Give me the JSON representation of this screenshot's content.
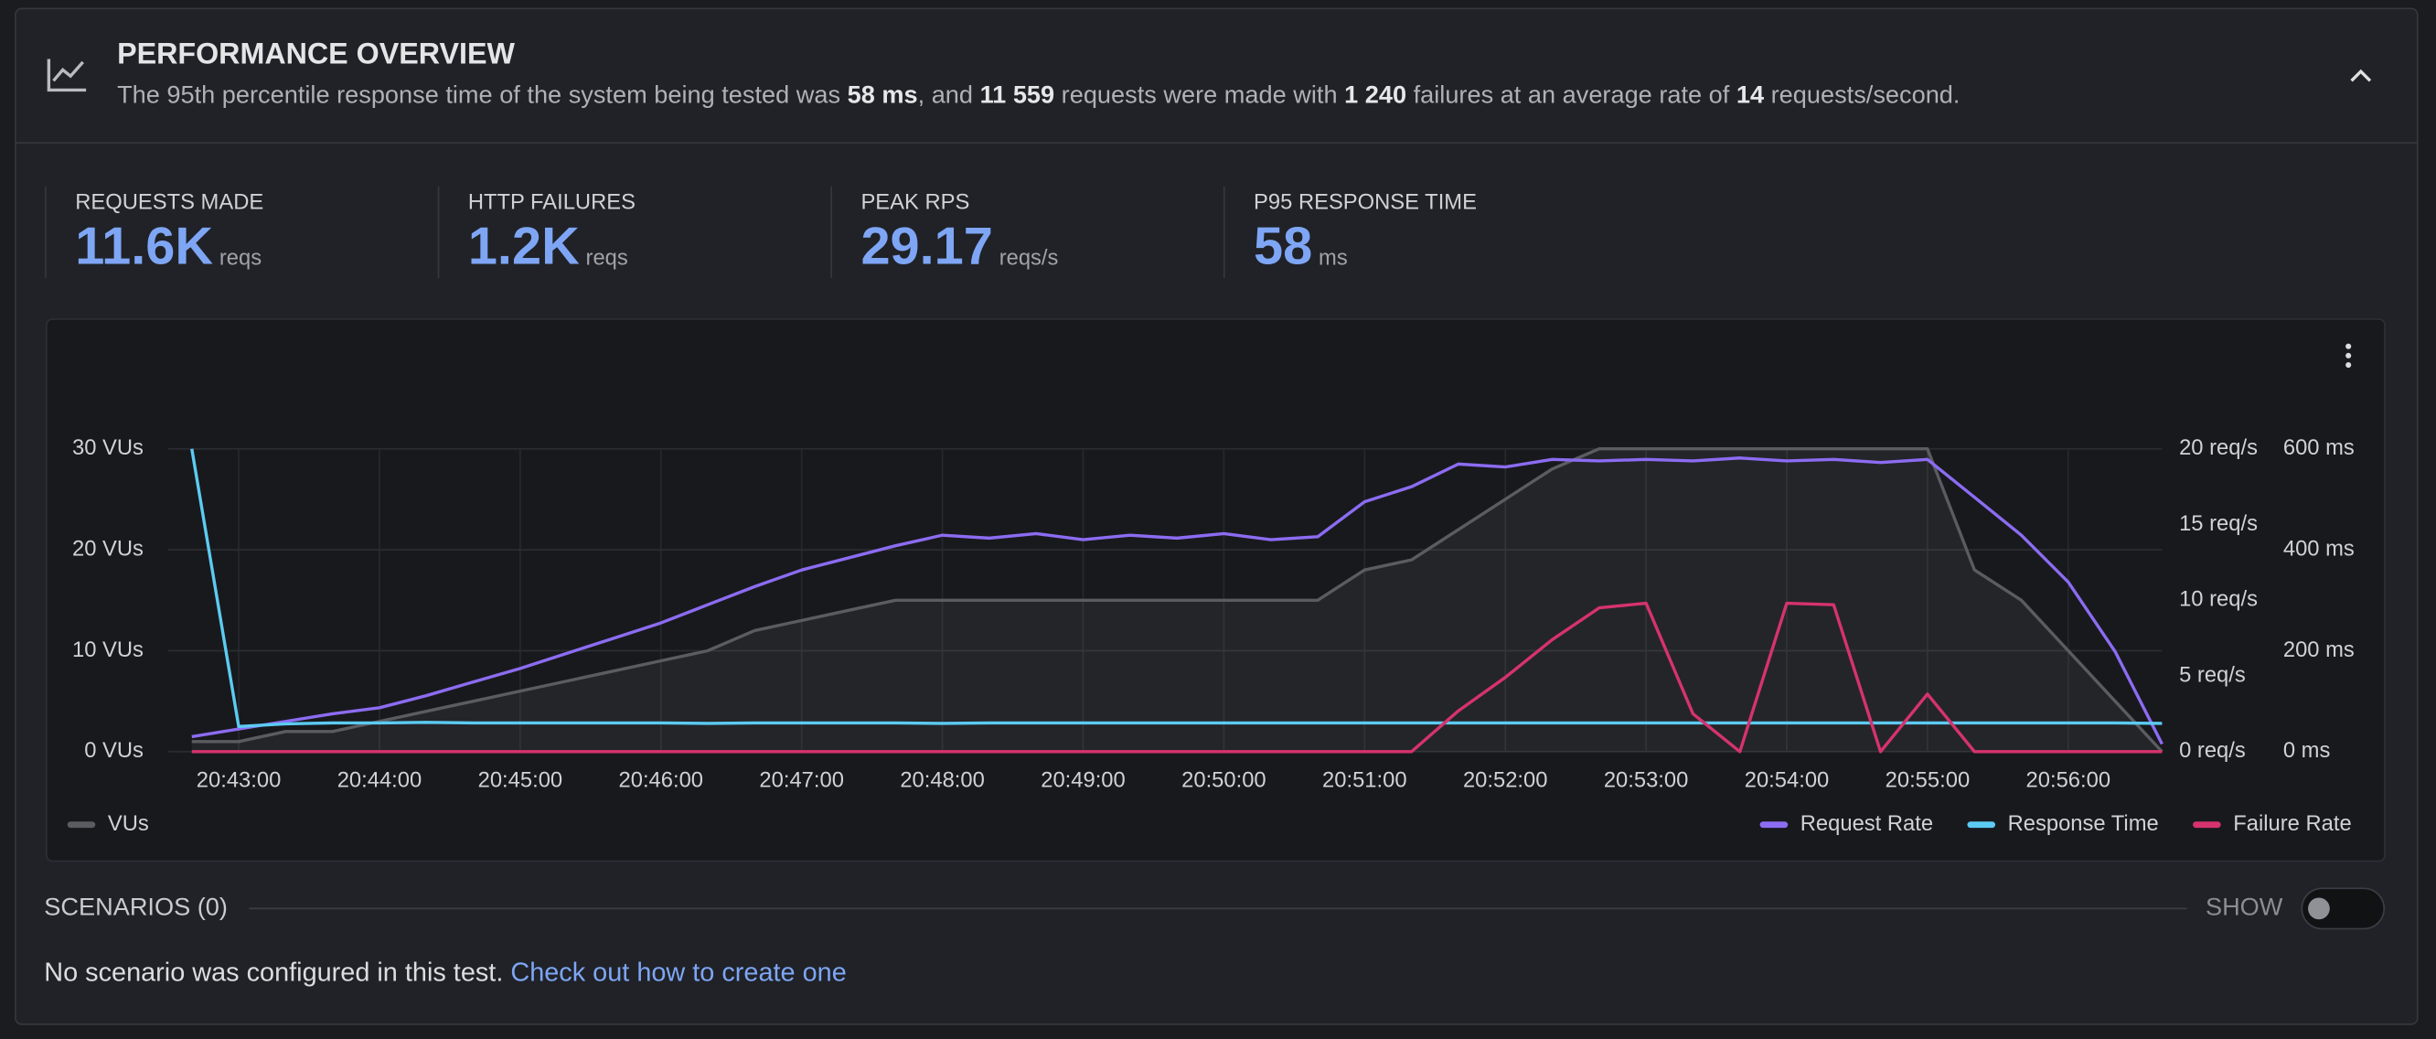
{
  "header": {
    "title": "PERFORMANCE OVERVIEW",
    "summary": [
      "The 95th percentile response time of the system being tested was ",
      "58 ms",
      ", and ",
      "11 559",
      " requests were made with ",
      "1 240",
      " failures at an average rate of ",
      "14",
      " requests/second."
    ]
  },
  "stats": [
    {
      "label": "REQUESTS MADE",
      "value": "11.6K",
      "unit": "reqs"
    },
    {
      "label": "HTTP FAILURES",
      "value": "1.2K",
      "unit": "reqs"
    },
    {
      "label": "PEAK RPS",
      "value": "29.17",
      "unit": "reqs/s"
    },
    {
      "label": "P95 RESPONSE TIME",
      "value": "58",
      "unit": "ms"
    }
  ],
  "chart_data": {
    "type": "line",
    "x": [
      "20:42:40",
      "20:43:00",
      "20:43:20",
      "20:43:40",
      "20:44:00",
      "20:44:20",
      "20:44:40",
      "20:45:00",
      "20:45:20",
      "20:45:40",
      "20:46:00",
      "20:46:20",
      "20:46:40",
      "20:47:00",
      "20:47:20",
      "20:47:40",
      "20:48:00",
      "20:48:20",
      "20:48:40",
      "20:49:00",
      "20:49:20",
      "20:49:40",
      "20:50:00",
      "20:50:20",
      "20:50:40",
      "20:51:00",
      "20:51:20",
      "20:51:40",
      "20:52:00",
      "20:52:20",
      "20:52:40",
      "20:53:00",
      "20:53:20",
      "20:53:40",
      "20:54:00",
      "20:54:20",
      "20:54:40",
      "20:55:00",
      "20:55:20",
      "20:55:40",
      "20:56:00",
      "20:56:20",
      "20:56:40"
    ],
    "xlim": [
      "20:42:30",
      "20:56:40"
    ],
    "xticks": [
      "20:43:00",
      "20:44:00",
      "20:45:00",
      "20:46:00",
      "20:47:00",
      "20:48:00",
      "20:49:00",
      "20:50:00",
      "20:51:00",
      "20:52:00",
      "20:53:00",
      "20:54:00",
      "20:55:00",
      "20:56:00"
    ],
    "ylim": [
      0,
      30
    ],
    "yticks": [
      {
        "value": 0,
        "label": "0 VUs"
      },
      {
        "value": 10,
        "label": "10 VUs"
      },
      {
        "value": 20,
        "label": "20 VUs"
      },
      {
        "value": 30,
        "label": "30 VUs"
      }
    ],
    "y2lim": [
      0,
      20
    ],
    "y2ticks": [
      {
        "value": 0,
        "label": "0 req/s"
      },
      {
        "value": 5,
        "label": "5 req/s"
      },
      {
        "value": 10,
        "label": "10 req/s"
      },
      {
        "value": 15,
        "label": "15 req/s"
      },
      {
        "value": 20,
        "label": "20 req/s"
      }
    ],
    "y3lim": [
      0,
      600
    ],
    "y3ticks": [
      {
        "value": 0,
        "label": "0 ms"
      },
      {
        "value": 200,
        "label": "200 ms"
      },
      {
        "value": 400,
        "label": "400 ms"
      },
      {
        "value": 600,
        "label": "600 ms"
      }
    ],
    "grid": true,
    "series": [
      {
        "name": "VUs",
        "color": "#5a5c61",
        "axis": "y",
        "area": true,
        "values": [
          1,
          1,
          2,
          2,
          3,
          4,
          5,
          6,
          7,
          8,
          9,
          10,
          12,
          13,
          14,
          15,
          15,
          15,
          15,
          15,
          15,
          15,
          15,
          15,
          15,
          18,
          19,
          22,
          25,
          28,
          30,
          30,
          30,
          30,
          30,
          30,
          30,
          30,
          18,
          15,
          10,
          5,
          0
        ]
      },
      {
        "name": "Request Rate",
        "color": "#8c6cf2",
        "axis": "y2",
        "values": [
          1,
          1.5,
          2,
          2.5,
          2.9,
          3.7,
          4.6,
          5.5,
          6.5,
          7.5,
          8.5,
          9.7,
          10.9,
          12,
          12.8,
          13.6,
          14.3,
          14.1,
          14.4,
          14,
          14.3,
          14.1,
          14.4,
          14,
          14.2,
          16.5,
          17.5,
          19,
          18.8,
          19.3,
          19.2,
          19.3,
          19.2,
          19.4,
          19.2,
          19.3,
          19.1,
          19.3,
          16.8,
          14.3,
          11.2,
          6.6,
          0.5
        ]
      },
      {
        "name": "Response Time",
        "color": "#5ccbf2",
        "axis": "y3",
        "values": [
          600,
          50,
          55,
          57,
          57,
          58,
          57,
          57,
          57,
          57,
          57,
          56,
          57,
          57,
          57,
          57,
          56,
          57,
          57,
          57,
          57,
          57,
          57,
          57,
          57,
          57,
          57,
          57,
          57,
          57,
          57,
          57,
          57,
          57,
          57,
          57,
          57,
          57,
          57,
          57,
          57,
          57,
          56
        ]
      },
      {
        "name": "Failure Rate",
        "color": "#d6336c",
        "axis": "y2",
        "values": [
          0,
          0,
          0,
          0,
          0,
          0,
          0,
          0,
          0,
          0,
          0,
          0,
          0,
          0,
          0,
          0,
          0,
          0,
          0,
          0,
          0,
          0,
          0,
          0,
          0,
          0,
          0,
          2.7,
          4.9,
          7.4,
          9.5,
          9.8,
          2.5,
          0,
          9.8,
          9.7,
          0,
          3.8,
          0,
          0,
          0,
          0,
          0
        ]
      }
    ]
  },
  "scenarios": {
    "title": "SCENARIOS (0)",
    "toggle_label": "SHOW",
    "message": "No scenario was configured in this test. ",
    "link": "Check out how to create one"
  }
}
